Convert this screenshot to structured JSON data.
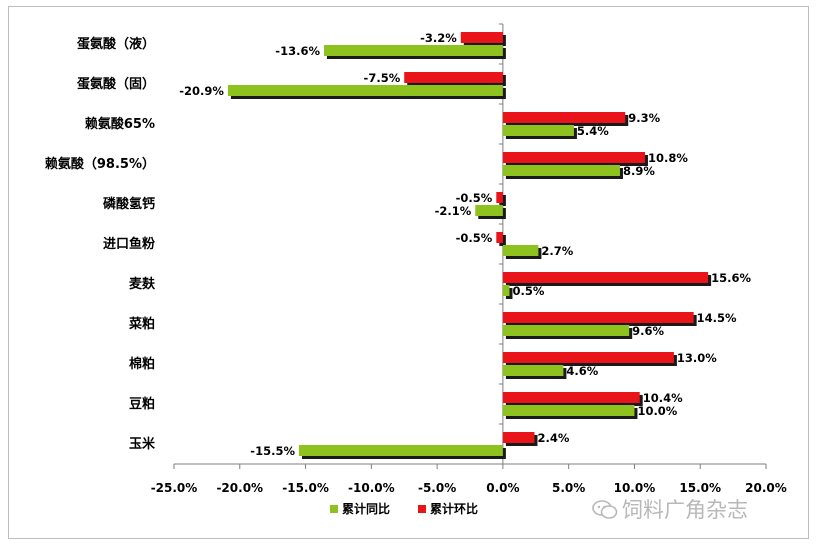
{
  "chart_data": {
    "type": "bar",
    "orientation": "horizontal",
    "categories": [
      "蛋氨酸（液）",
      "蛋氨酸（固）",
      "赖氨酸65%",
      "赖氨酸（98.5%）",
      "磷酸氢钙",
      "进口鱼粉",
      "麦麸",
      "菜粕",
      "棉粕",
      "豆粕",
      "玉米"
    ],
    "series": [
      {
        "name": "累计环比",
        "color": "#e8141a",
        "values": [
          -3.2,
          -7.5,
          9.3,
          10.8,
          -0.5,
          -0.5,
          15.6,
          14.5,
          13.0,
          10.4,
          2.4
        ],
        "labels": [
          "-3.2%",
          "-7.5%",
          "9.3%",
          "10.8%",
          "-0.5%",
          "-0.5%",
          "15.6%",
          "14.5%",
          "13.0%",
          "10.4%",
          "2.4%"
        ]
      },
      {
        "name": "累计同比",
        "color": "#8dc21f",
        "values": [
          -13.6,
          -20.9,
          5.4,
          8.9,
          -2.1,
          2.7,
          0.5,
          9.6,
          4.6,
          10.0,
          -15.5
        ],
        "labels": [
          "-13.6%",
          "-20.9%",
          "5.4%",
          "8.9%",
          "-2.1%",
          "2.7%",
          "0.5%",
          "9.6%",
          "4.6%",
          "10.0%",
          "-15.5%"
        ]
      }
    ],
    "xlim": [
      -25,
      20
    ],
    "xticks": [
      -25,
      -20,
      -15,
      -10,
      -5,
      0,
      5,
      10,
      15,
      20
    ],
    "xtick_labels": [
      "-25.0%",
      "-20.0%",
      "-15.0%",
      "-10.0%",
      "-5.0%",
      "0.0%",
      "5.0%",
      "10.0%",
      "15.0%",
      "20.0%"
    ],
    "title": "",
    "xlabel": "",
    "ylabel": "",
    "grid": false,
    "legend_position": "bottom",
    "legend": [
      {
        "name": "累计同比",
        "color": "#8dc21f"
      },
      {
        "name": "累计环比",
        "color": "#e8141a"
      }
    ]
  },
  "watermark": {
    "text": "饲料广角杂志",
    "icon": "wechat-icon"
  }
}
